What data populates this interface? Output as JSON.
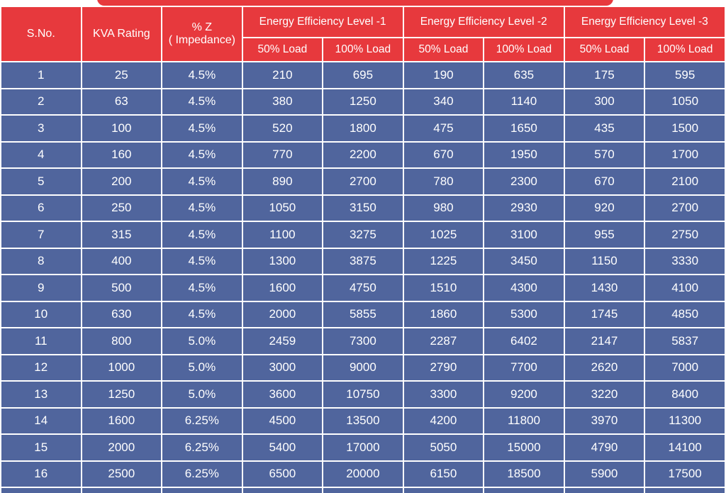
{
  "banner": {
    "color": "#e7393d"
  },
  "table": {
    "header": {
      "sno": "S.No.",
      "kva": "KVA Rating",
      "impedance_line1": "% Z",
      "impedance_line2": "( Impedance)",
      "groups": [
        "Energy Efficiency Level -1",
        "Energy Efficiency Level -2",
        "Energy Efficiency Level -3"
      ],
      "sub_load_50": "50% Load",
      "sub_load_100": "100% Load"
    },
    "rows": [
      [
        "1",
        "25",
        "4.5%",
        "210",
        "695",
        "190",
        "635",
        "175",
        "595"
      ],
      [
        "2",
        "63",
        "4.5%",
        "380",
        "1250",
        "340",
        "1140",
        "300",
        "1050"
      ],
      [
        "3",
        "100",
        "4.5%",
        "520",
        "1800",
        "475",
        "1650",
        "435",
        "1500"
      ],
      [
        "4",
        "160",
        "4.5%",
        "770",
        "2200",
        "670",
        "1950",
        "570",
        "1700"
      ],
      [
        "5",
        "200",
        "4.5%",
        "890",
        "2700",
        "780",
        "2300",
        "670",
        "2100"
      ],
      [
        "6",
        "250",
        "4.5%",
        "1050",
        "3150",
        "980",
        "2930",
        "920",
        "2700"
      ],
      [
        "7",
        "315",
        "4.5%",
        "1100",
        "3275",
        "1025",
        "3100",
        "955",
        "2750"
      ],
      [
        "8",
        "400",
        "4.5%",
        "1300",
        "3875",
        "1225",
        "3450",
        "1150",
        "3330"
      ],
      [
        "9",
        "500",
        "4.5%",
        "1600",
        "4750",
        "1510",
        "4300",
        "1430",
        "4100"
      ],
      [
        "10",
        "630",
        "4.5%",
        "2000",
        "5855",
        "1860",
        "5300",
        "1745",
        "4850"
      ],
      [
        "11",
        "800",
        "5.0%",
        "2459",
        "7300",
        "2287",
        "6402",
        "2147",
        "5837"
      ],
      [
        "12",
        "1000",
        "5.0%",
        "3000",
        "9000",
        "2790",
        "7700",
        "2620",
        "7000"
      ],
      [
        "13",
        "1250",
        "5.0%",
        "3600",
        "10750",
        "3300",
        "9200",
        "3220",
        "8400"
      ],
      [
        "14",
        "1600",
        "6.25%",
        "4500",
        "13500",
        "4200",
        "11800",
        "3970",
        "11300"
      ],
      [
        "15",
        "2000",
        "6.25%",
        "5400",
        "17000",
        "5050",
        "15000",
        "4790",
        "14100"
      ],
      [
        "16",
        "2500",
        "6.25%",
        "6500",
        "20000",
        "6150",
        "18500",
        "5900",
        "17500"
      ]
    ]
  },
  "colors": {
    "header_red": "#e7393d",
    "row_blue": "#50659d",
    "grid_white": "#ffffff",
    "text_white": "#ffffff"
  }
}
